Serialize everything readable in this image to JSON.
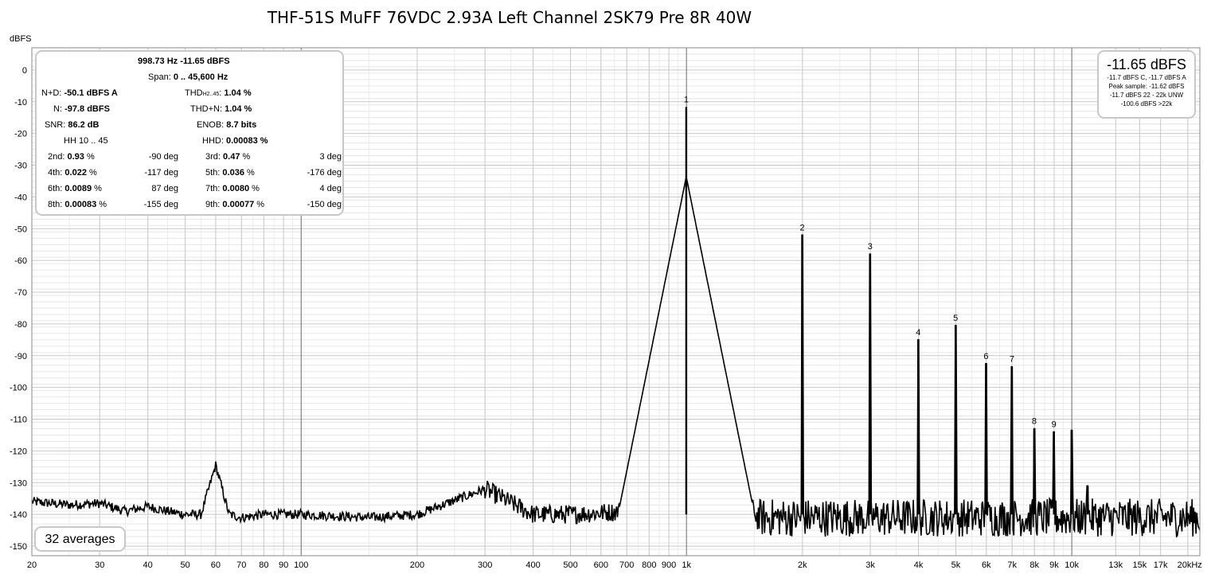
{
  "title": "THF-51S MuFF 76VDC 2.93A Left Channel 2SK79 Pre 8R 40W",
  "y_unit": "dBFS",
  "stats": {
    "header1": "998.73 Hz  -11.65 dBFS",
    "span_label": "Span:",
    "span_value": "0 .. 45,600 Hz",
    "nd_label": "N+D:",
    "nd_value": "-50.1 dBFS A",
    "thd_label_main": "THD",
    "thd_label_sub": "H2..45",
    "thd_label_end": ":",
    "thd_value": "1.04 %",
    "n_label": "N:",
    "n_value": "-97.8 dBFS",
    "thdn_label": "THD+N:",
    "thdn_value": "1.04 %",
    "snr_label": "SNR:",
    "snr_value": "86.2 dB",
    "enob_label": "ENOB:",
    "enob_value": "8.7 bits",
    "hh_label": "HH 10 .. 45",
    "hhd_label": "HHD:",
    "hhd_value": "0.00083 %",
    "harmonics": [
      {
        "label": "2nd:",
        "pct": "0.93",
        "unit": " %",
        "phase": "-90 deg"
      },
      {
        "label": "3rd:",
        "pct": "0.47",
        "unit": " %",
        "phase": "3 deg"
      },
      {
        "label": "4th:",
        "pct": "0.022",
        "unit": " %",
        "phase": "-117 deg"
      },
      {
        "label": "5th:",
        "pct": "0.036",
        "unit": " %",
        "phase": "-176 deg"
      },
      {
        "label": "6th:",
        "pct": "0.0089",
        "unit": " %",
        "phase": "87 deg"
      },
      {
        "label": "7th:",
        "pct": "0.0080",
        "unit": " %",
        "phase": "4 deg"
      },
      {
        "label": "8th:",
        "pct": "0.00083",
        "unit": " %",
        "phase": "-155 deg"
      },
      {
        "label": "9th:",
        "pct": "0.00077",
        "unit": " %",
        "phase": "-150 deg"
      }
    ]
  },
  "levels": {
    "main": "-11.65 dBFS",
    "lines": [
      "-11.7 dBFS C, -11.7 dBFS A",
      "Peak sample: -11.62 dBFS",
      "-11.7 dBFS 22 - 22k UNW",
      "-100.6 dBFS >22k"
    ]
  },
  "averages": "32 averages",
  "chart_data": {
    "type": "line",
    "x_scale": "log",
    "xlim": [
      20,
      21500
    ],
    "ylim": [
      -153,
      7
    ],
    "x_ticks": [
      {
        "v": 20,
        "label": "20"
      },
      {
        "v": 30,
        "label": "30"
      },
      {
        "v": 40,
        "label": "40"
      },
      {
        "v": 50,
        "label": "50"
      },
      {
        "v": 60,
        "label": "60"
      },
      {
        "v": 70,
        "label": "70"
      },
      {
        "v": 80,
        "label": "80"
      },
      {
        "v": 90,
        "label": "90"
      },
      {
        "v": 100,
        "label": "100"
      },
      {
        "v": 200,
        "label": "200"
      },
      {
        "v": 300,
        "label": "300"
      },
      {
        "v": 400,
        "label": "400"
      },
      {
        "v": 500,
        "label": "500"
      },
      {
        "v": 600,
        "label": "600"
      },
      {
        "v": 700,
        "label": "700"
      },
      {
        "v": 800,
        "label": "800"
      },
      {
        "v": 900,
        "label": "900"
      },
      {
        "v": 1000,
        "label": "1k"
      },
      {
        "v": 2000,
        "label": "2k"
      },
      {
        "v": 3000,
        "label": "3k"
      },
      {
        "v": 4000,
        "label": "4k"
      },
      {
        "v": 5000,
        "label": "5k"
      },
      {
        "v": 6000,
        "label": "6k"
      },
      {
        "v": 7000,
        "label": "7k"
      },
      {
        "v": 8000,
        "label": "8k"
      },
      {
        "v": 9000,
        "label": "9k"
      },
      {
        "v": 10000,
        "label": "10k"
      },
      {
        "v": 13000,
        "label": "13k"
      },
      {
        "v": 15000,
        "label": "15k"
      },
      {
        "v": 17000,
        "label": "17k"
      },
      {
        "v": 20000,
        "label": "20kHz"
      }
    ],
    "y_ticks": [
      0,
      -10,
      -20,
      -30,
      -40,
      -50,
      -60,
      -70,
      -80,
      -90,
      -100,
      -110,
      -120,
      -130,
      -140,
      -150
    ],
    "peaks": [
      {
        "label": "1",
        "f": 998.73,
        "db": -11.65
      },
      {
        "label": "2",
        "f": 1997,
        "db": -52
      },
      {
        "label": "3",
        "f": 2996,
        "db": -58
      },
      {
        "label": "4",
        "f": 3995,
        "db": -85
      },
      {
        "label": "5",
        "f": 4994,
        "db": -80.5
      },
      {
        "label": "6",
        "f": 5992,
        "db": -92.5
      },
      {
        "label": "7",
        "f": 6991,
        "db": -93.5
      },
      {
        "label": "8",
        "f": 7990,
        "db": -113
      },
      {
        "label": "9",
        "f": 8989,
        "db": -114
      },
      {
        "label": "",
        "f": 9987,
        "db": -113.5
      },
      {
        "label": "",
        "f": 11000,
        "db": -131
      }
    ],
    "noise_floor": [
      {
        "f": 20,
        "db": -136
      },
      {
        "f": 25,
        "db": -137
      },
      {
        "f": 30,
        "db": -136.5
      },
      {
        "f": 35,
        "db": -139
      },
      {
        "f": 40,
        "db": -137.5
      },
      {
        "f": 45,
        "db": -139
      },
      {
        "f": 50,
        "db": -140
      },
      {
        "f": 55,
        "db": -140
      },
      {
        "f": 60,
        "db": -124.5
      },
      {
        "f": 65,
        "db": -140
      },
      {
        "f": 70,
        "db": -141
      },
      {
        "f": 80,
        "db": -140
      },
      {
        "f": 100,
        "db": -140
      },
      {
        "f": 150,
        "db": -141
      },
      {
        "f": 200,
        "db": -140
      },
      {
        "f": 300,
        "db": -132
      },
      {
        "f": 400,
        "db": -140
      },
      {
        "f": 500,
        "db": -140
      },
      {
        "f": 700,
        "db": -139
      },
      {
        "f": 900,
        "db": -137
      },
      {
        "f": 1000,
        "db": -130
      },
      {
        "f": 1200,
        "db": -141
      },
      {
        "f": 2000,
        "db": -141
      },
      {
        "f": 5000,
        "db": -141
      },
      {
        "f": 10000,
        "db": -141
      },
      {
        "f": 20000,
        "db": -141
      }
    ]
  }
}
